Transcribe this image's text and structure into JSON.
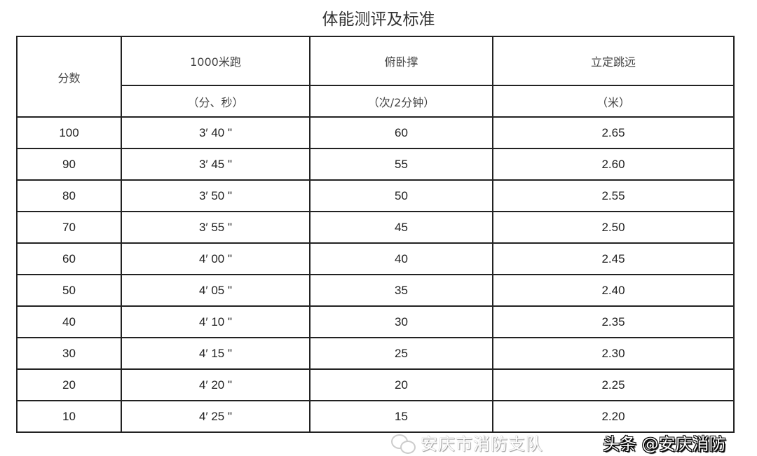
{
  "title": "体能测评及标准",
  "headers": {
    "score": "分数",
    "run": "1000米跑",
    "run_unit": "（分、秒）",
    "pushup": "俯卧撑",
    "pushup_unit": "（次/2分钟）",
    "jump": "立定跳远",
    "jump_unit": "（米）"
  },
  "rows": [
    [
      "100",
      "3′ 40 \"",
      "60",
      "2.65"
    ],
    [
      "90",
      "3′ 45 \"",
      "55",
      "2.60"
    ],
    [
      "80",
      "3′ 50 \"",
      "50",
      "2.55"
    ],
    [
      "70",
      "3′ 55 \"",
      "45",
      "2.50"
    ],
    [
      "60",
      "4′ 00 \"",
      "40",
      "2.45"
    ],
    [
      "50",
      "4′ 05 \"",
      "35",
      "2.40"
    ],
    [
      "40",
      "4′ 10 \"",
      "30",
      "2.35"
    ],
    [
      "30",
      "4′ 15 \"",
      "25",
      "2.30"
    ],
    [
      "20",
      "4′ 20 \"",
      "20",
      "2.25"
    ],
    [
      "10",
      "4′ 25 \"",
      "15",
      "2.20"
    ]
  ],
  "watermarks": {
    "wechat": "安庆市消防支队",
    "toutiao": "头条 @安庆消防",
    "wechat_icon": "wechat-icon"
  }
}
